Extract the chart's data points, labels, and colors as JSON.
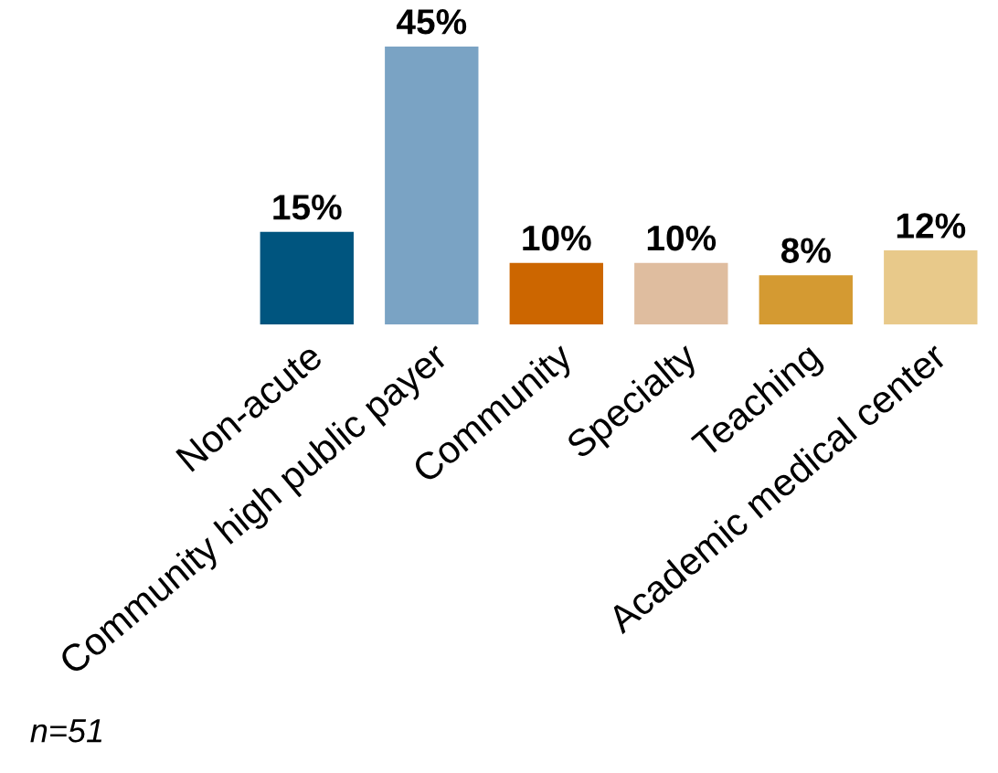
{
  "chart_data": {
    "type": "bar",
    "categories": [
      "Non-acute",
      "Community high public payer",
      "Community",
      "Specialty",
      "Teaching",
      "Academic medical center"
    ],
    "values": [
      15,
      45,
      10,
      10,
      8,
      12
    ],
    "colors": [
      "#00557f",
      "#7aa3c4",
      "#cc6600",
      "#dfbd9f",
      "#d49a32",
      "#e8c98a"
    ],
    "value_labels": [
      "15%",
      "45%",
      "10%",
      "10%",
      "8%",
      "12%"
    ],
    "annotations": [
      "n=51"
    ],
    "grid": false,
    "legend": false
  }
}
